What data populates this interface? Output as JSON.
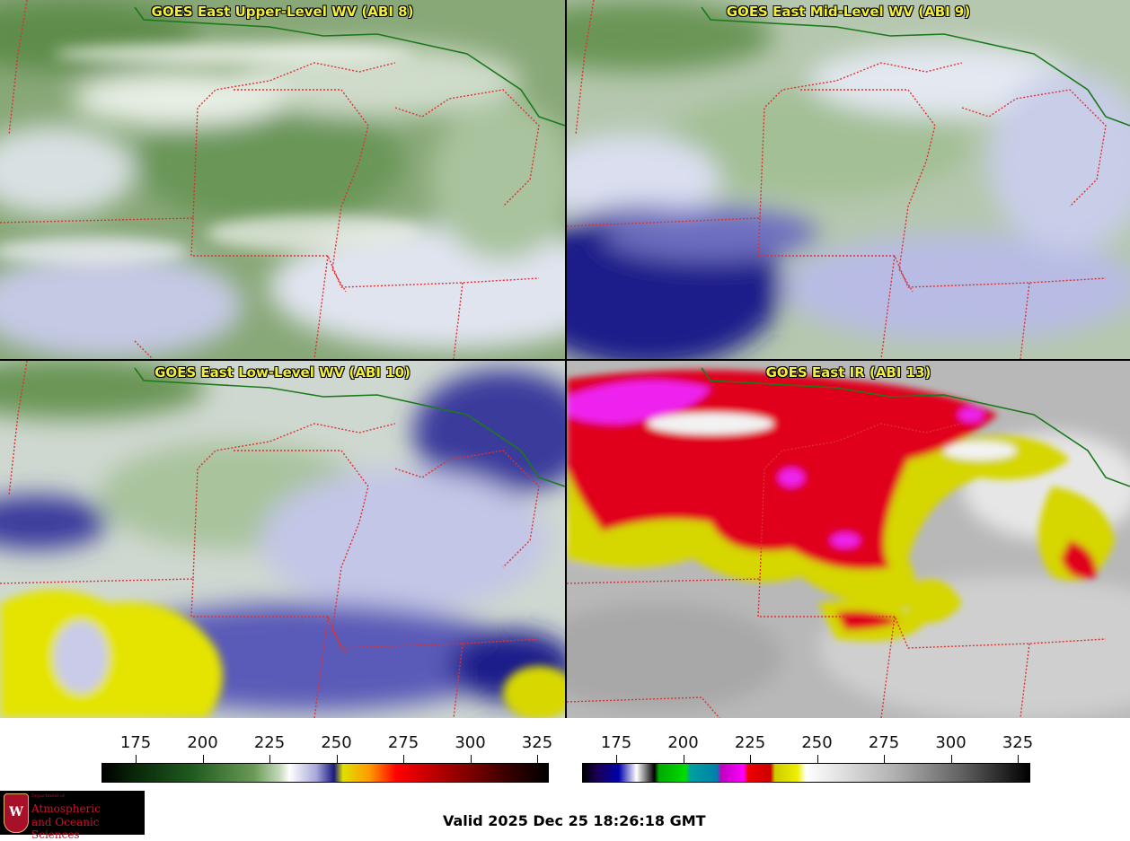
{
  "panels": [
    {
      "id": "upper",
      "title": "GOES East Upper-Level WV (ABI 8)"
    },
    {
      "id": "mid",
      "title": "GOES East Mid-Level WV (ABI 9)"
    },
    {
      "id": "low",
      "title": "GOES East Low-Level WV (ABI 10)"
    },
    {
      "id": "ir",
      "title": "GOES East IR (ABI 13)"
    }
  ],
  "colorbars": {
    "left": {
      "ticks": [
        "175",
        "200",
        "225",
        "250",
        "275",
        "300",
        "325"
      ]
    },
    "right": {
      "ticks": [
        "175",
        "200",
        "225",
        "250",
        "275",
        "300",
        "325"
      ]
    }
  },
  "logo": {
    "crest": "W",
    "dept": "Department of",
    "line1": "Atmospheric",
    "line2": "and Oceanic Sciences"
  },
  "valid_time": "Valid 2025 Dec 25 18:26:18 GMT",
  "colors": {
    "wv_green": "#7fa468",
    "wv_white": "#f2f2f2",
    "wv_blue": "#1e1e8a",
    "ir_red": "#e0001c",
    "ir_yellow": "#d8d800",
    "ir_magenta": "#ff22ff",
    "state_border": "#e03030",
    "coast_border": "#1a7a1a"
  }
}
